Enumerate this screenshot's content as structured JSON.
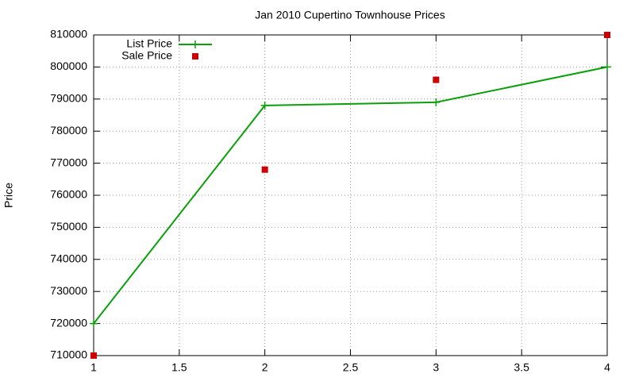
{
  "chart_data": {
    "type": "line",
    "title": "Jan 2010 Cupertino Townhouse Prices",
    "y_label": "Price",
    "x": [
      1,
      2,
      3,
      4
    ],
    "series": [
      {
        "name": "List Price",
        "color": "#0aa00a",
        "line": true,
        "marker": "plus",
        "values": [
          720000,
          788000,
          789000,
          800000
        ]
      },
      {
        "name": "Sale Price",
        "color": "#cc0000",
        "line": false,
        "marker": "square",
        "values": [
          710000,
          768000,
          796000,
          810000
        ]
      }
    ],
    "xlim": [
      1,
      4
    ],
    "xticks": [
      1,
      1.5,
      2,
      2.5,
      3,
      3.5,
      4
    ],
    "ylim": [
      710000,
      810000
    ],
    "yticks": [
      710000,
      720000,
      730000,
      740000,
      750000,
      760000,
      770000,
      780000,
      790000,
      800000,
      810000
    ],
    "grid": true,
    "legend": "top-left"
  }
}
